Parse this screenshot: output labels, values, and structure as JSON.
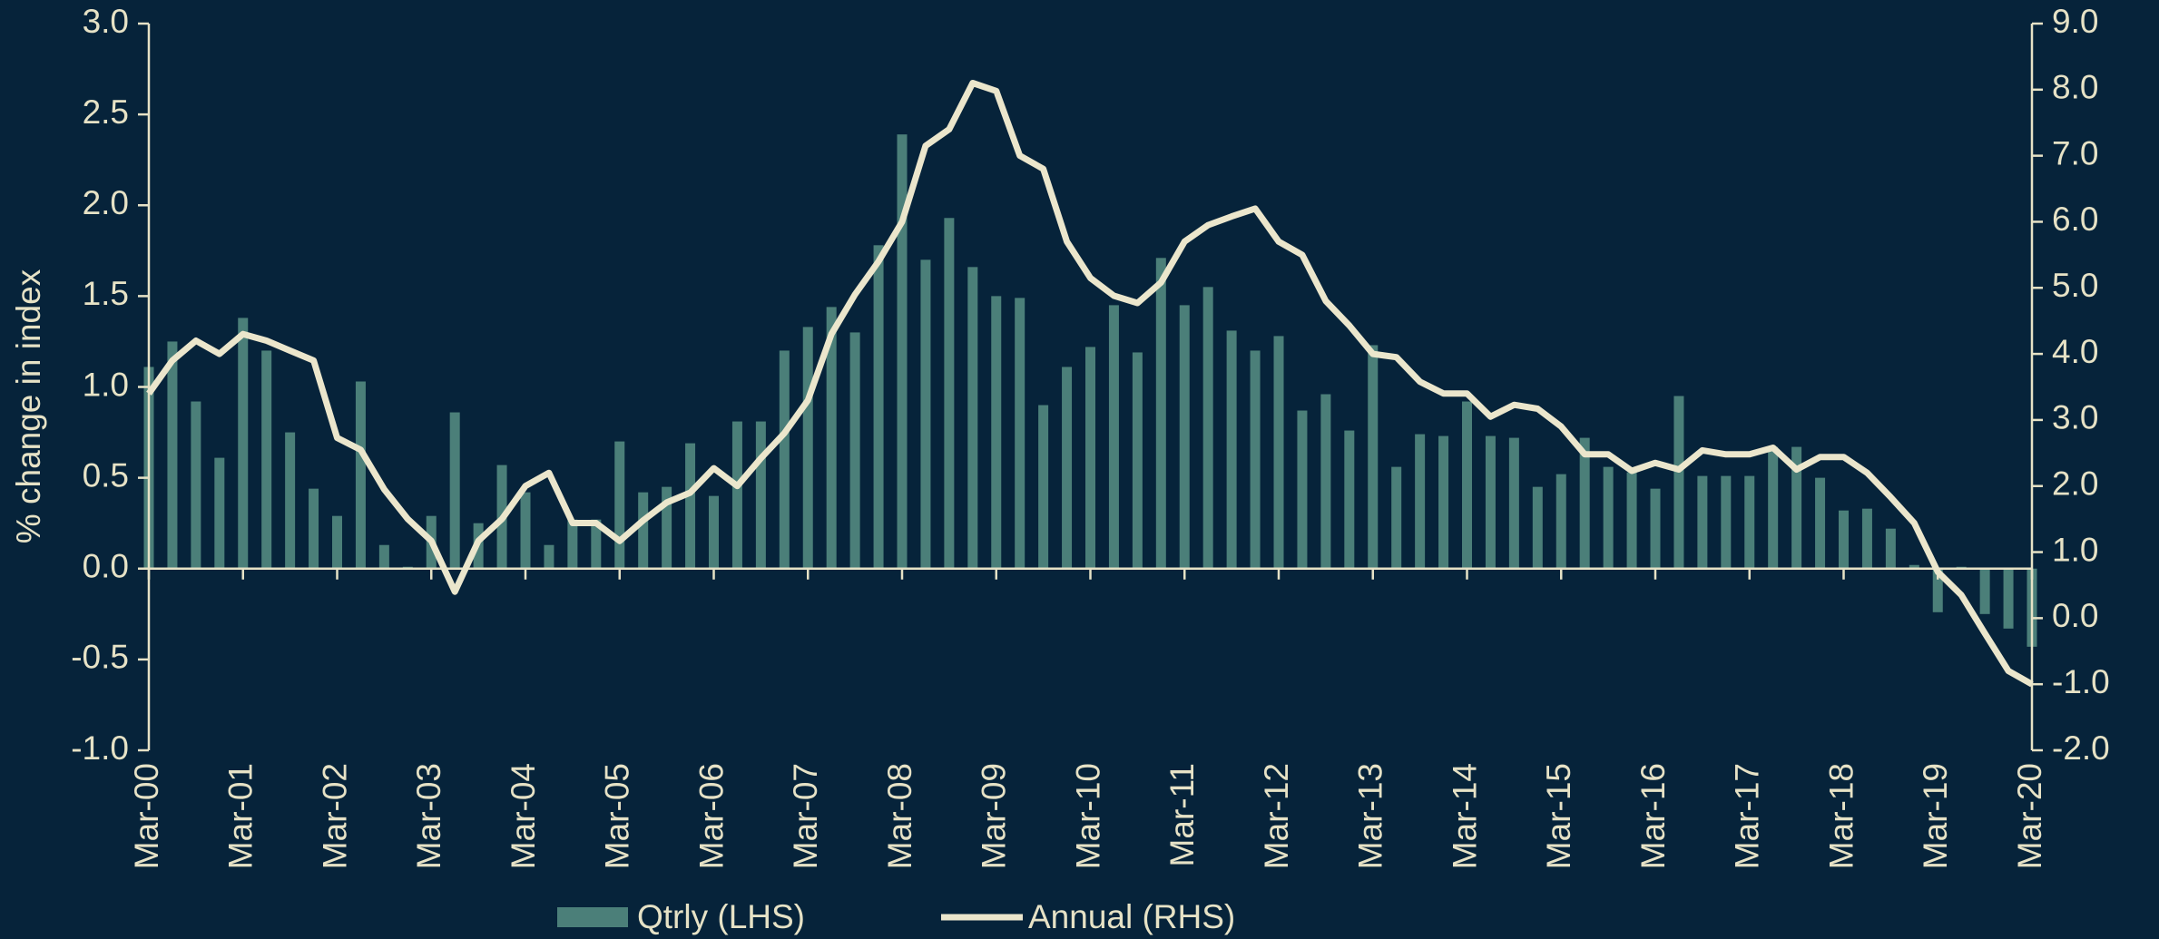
{
  "chart_data": {
    "type": "bar_line",
    "y_label": "% change in index",
    "categories": [
      "Mar-00",
      null,
      null,
      null,
      "Mar-01",
      null,
      null,
      null,
      "Mar-02",
      null,
      null,
      null,
      "Mar-03",
      null,
      null,
      null,
      "Mar-04",
      null,
      null,
      null,
      "Mar-05",
      null,
      null,
      null,
      "Mar-06",
      null,
      null,
      null,
      "Mar-07",
      null,
      null,
      null,
      "Mar-08",
      null,
      null,
      null,
      "Mar-09",
      null,
      null,
      null,
      "Mar-10",
      null,
      null,
      null,
      "Mar-11",
      null,
      null,
      null,
      "Mar-12",
      null,
      null,
      null,
      "Mar-13",
      null,
      null,
      null,
      "Mar-14",
      null,
      null,
      null,
      "Mar-15",
      null,
      null,
      null,
      "Mar-16",
      null,
      null,
      null,
      "Mar-17",
      null,
      null,
      null,
      "Mar-18",
      null,
      null,
      null,
      "Mar-19",
      null,
      null,
      null,
      "Mar-20"
    ],
    "series": [
      {
        "name": "Qtrly (LHS)",
        "type": "bar",
        "color": "#4b7f79",
        "axis": "y",
        "values": [
          1.11,
          1.25,
          0.92,
          0.61,
          1.38,
          1.2,
          0.75,
          0.44,
          0.29,
          1.03,
          0.13,
          0.01,
          0.29,
          0.86,
          0.25,
          0.57,
          0.42,
          0.13,
          0.27,
          0.27,
          0.7,
          0.42,
          0.45,
          0.69,
          0.4,
          0.81,
          0.81,
          1.2,
          1.33,
          1.44,
          1.3,
          1.78,
          2.39,
          1.7,
          1.93,
          1.66,
          1.5,
          1.49,
          0.9,
          1.11,
          1.22,
          1.45,
          1.19,
          1.71,
          1.45,
          1.55,
          1.31,
          1.2,
          1.28,
          0.87,
          0.96,
          0.76,
          1.23,
          0.56,
          0.74,
          0.73,
          0.92,
          0.73,
          0.72,
          0.45,
          0.52,
          0.72,
          0.56,
          0.53,
          0.44,
          0.95,
          0.51,
          0.51,
          0.51,
          0.67,
          0.67,
          0.5,
          0.32,
          0.33,
          0.22,
          0.02,
          -0.24,
          0.01,
          -0.25,
          -0.33,
          -0.43
        ]
      },
      {
        "name": "Annual (RHS)",
        "type": "line",
        "color": "#ebe6cc",
        "axis": "y2",
        "values": [
          3.4,
          3.9,
          4.2,
          4.0,
          4.3,
          4.2,
          4.05,
          3.9,
          2.73,
          2.55,
          1.95,
          1.5,
          1.17,
          0.4,
          1.17,
          1.5,
          2.0,
          2.2,
          1.44,
          1.44,
          1.17,
          1.48,
          1.75,
          1.9,
          2.27,
          2.0,
          2.42,
          2.8,
          3.3,
          4.3,
          4.9,
          5.4,
          6.0,
          7.15,
          7.4,
          8.1,
          7.98,
          7.0,
          6.8,
          5.7,
          5.15,
          4.88,
          4.77,
          5.08,
          5.7,
          5.95,
          6.08,
          6.2,
          5.7,
          5.5,
          4.8,
          4.43,
          4.0,
          3.95,
          3.58,
          3.4,
          3.4,
          3.05,
          3.23,
          3.17,
          2.9,
          2.48,
          2.48,
          2.23,
          2.35,
          2.25,
          2.54,
          2.48,
          2.48,
          2.58,
          2.25,
          2.44,
          2.44,
          2.2,
          1.83,
          1.44,
          0.7,
          0.35,
          -0.23,
          -0.8,
          -1.0
        ]
      }
    ],
    "ylim": [
      -1,
      3
    ],
    "yticks": [
      {
        "value": -1,
        "label": "-1.0"
      },
      -0.5,
      {
        "value": 0,
        "label": "0.0"
      },
      0.5,
      {
        "value": 1,
        "label": "1.0"
      },
      1.5,
      {
        "value": 2,
        "label": "2.0"
      },
      2.5,
      {
        "value": 3,
        "label": "3.0"
      }
    ],
    "y2lim": [
      -2,
      9
    ],
    "y2ticks": [
      {
        "value": -2,
        "label": "-2.0"
      },
      {
        "value": -1,
        "label": "-1.0"
      },
      {
        "value": 0,
        "label": "0.0"
      },
      {
        "value": 1,
        "label": "1.0"
      },
      {
        "value": 2,
        "label": "2.0"
      },
      {
        "value": 3,
        "label": "3.0"
      },
      {
        "value": 4,
        "label": "4.0"
      },
      {
        "value": 5,
        "label": "5.0"
      },
      {
        "value": 6,
        "label": "6.0"
      },
      {
        "value": 7,
        "label": "7.0"
      },
      {
        "value": 8,
        "label": "8.0"
      },
      {
        "value": 9,
        "label": "9.0"
      }
    ],
    "legend": "bottom",
    "grid": false
  }
}
